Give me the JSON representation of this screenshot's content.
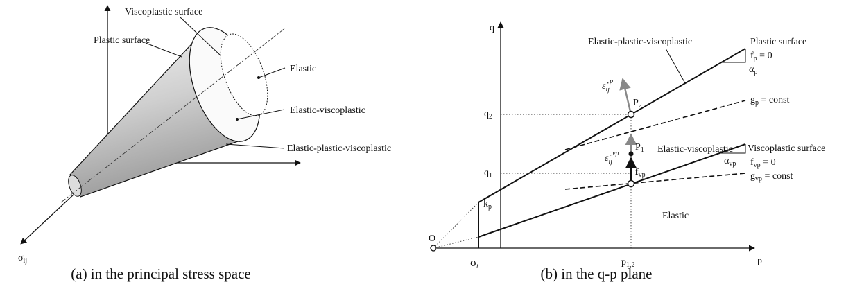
{
  "panel_a": {
    "axis_label": {
      "base": "σ",
      "sub": "ij"
    },
    "labels": [
      "Viscoplastic surface",
      "Plastic surface",
      "Elastic",
      "Elastic-viscoplastic",
      "Elastic-plastic-viscoplastic"
    ],
    "caption": "(a) in the principal stress space"
  },
  "panel_b": {
    "q_axis": "q",
    "p_axis": "p",
    "origin": "O",
    "sigma_t": {
      "base": "σ",
      "sub": "t"
    },
    "k_p": {
      "base": "k",
      "sub": "p"
    },
    "q1": {
      "base": "q",
      "sub": "1"
    },
    "q2": {
      "base": "q",
      "sub": "2"
    },
    "p12": {
      "base": "p",
      "sub": "1,2"
    },
    "region_epv": "Elastic-plastic-viscoplastic",
    "plastic_surface": "Plastic surface",
    "f_p": {
      "base": "f",
      "sub": "p",
      "rest": " = 0"
    },
    "alpha_p": {
      "base": "α",
      "sub": "p"
    },
    "g_p": {
      "base": "g",
      "sub": "p",
      "rest": " = const"
    },
    "P2": {
      "base": "P",
      "sub": "2"
    },
    "eps_p": {
      "base": "ε̇",
      "sub": "ij",
      "sup": "p"
    },
    "region_ev": "Elastic-viscoplastic",
    "eps_vp": {
      "base": "ε̇",
      "sub": "ij",
      "sup": "vp"
    },
    "P1": {
      "base": "P",
      "sub": "1"
    },
    "f_vp_arrow": {
      "base": "f",
      "sub": "vp"
    },
    "viscoplastic_surface": "Viscoplastic surface",
    "f_vp": {
      "base": "f",
      "sub": "vp",
      "rest": " = 0"
    },
    "alpha_vp": {
      "base": "α",
      "sub": "vp"
    },
    "g_vp": {
      "base": "g",
      "sub": "vp",
      "rest": " = const"
    },
    "region_e": "Elastic",
    "caption": "(b) in the q-p plane"
  }
}
